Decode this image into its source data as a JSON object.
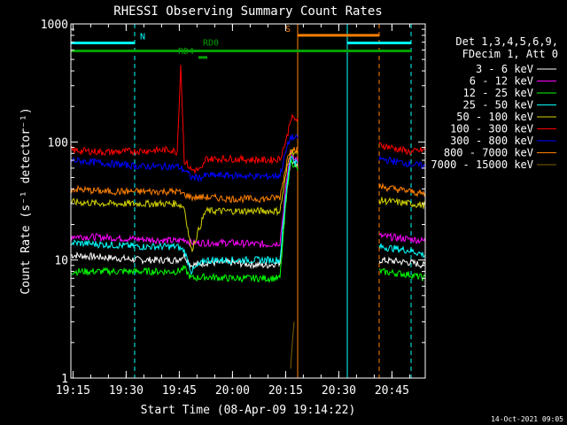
{
  "chart_data": {
    "type": "line",
    "title": "RHESSI Observing Summary Count Rates",
    "xlabel": "Start Time (08-Apr-09 19:14:22)",
    "ylabel": "Count Rate (s⁻¹ detector⁻¹)",
    "x_unit": "minutes since 19:14:22",
    "xlim": [
      0,
      100
    ],
    "ylim": [
      1,
      1000
    ],
    "yscale": "log",
    "x_ticks": [
      {
        "x": 0.6,
        "label": "19:15"
      },
      {
        "x": 15.6,
        "label": "19:30"
      },
      {
        "x": 30.6,
        "label": "19:45"
      },
      {
        "x": 45.6,
        "label": "20:00"
      },
      {
        "x": 60.6,
        "label": "20:15"
      },
      {
        "x": 75.6,
        "label": "20:30"
      },
      {
        "x": 90.6,
        "label": "20:45"
      }
    ],
    "y_ticks": [
      {
        "y": 1,
        "label": "1"
      },
      {
        "y": 10,
        "label": "10"
      },
      {
        "y": 100,
        "label": "100"
      },
      {
        "y": 1000,
        "label": "1000"
      }
    ],
    "legend_title": [
      "Det 1,3,4,5,6,9,",
      "FDecim 1, Att 0"
    ],
    "legend_position": "right",
    "series": [
      {
        "name": "3 - 6 keV",
        "color": "#ffffff",
        "points": [
          [
            0,
            11
          ],
          [
            10,
            10.5
          ],
          [
            20,
            10
          ],
          [
            30,
            10
          ],
          [
            32,
            11
          ],
          [
            34,
            9
          ],
          [
            38,
            9.5
          ],
          [
            45,
            9.5
          ],
          [
            55,
            9
          ],
          [
            59,
            9.5
          ],
          [
            61,
            40
          ],
          [
            62,
            70
          ],
          [
            87,
            10
          ],
          [
            96,
            9.5
          ],
          [
            100,
            9
          ]
        ]
      },
      {
        "name": "6 - 12 keV",
        "color": "#ff00ff",
        "points": [
          [
            0,
            16
          ],
          [
            10,
            15.5
          ],
          [
            20,
            15
          ],
          [
            30,
            14.5
          ],
          [
            32,
            15
          ],
          [
            34,
            14
          ],
          [
            38,
            14
          ],
          [
            45,
            14
          ],
          [
            55,
            13.5
          ],
          [
            59,
            14
          ],
          [
            61,
            50
          ],
          [
            62,
            80
          ],
          [
            87,
            16
          ],
          [
            96,
            15
          ],
          [
            100,
            14.5
          ]
        ]
      },
      {
        "name": "12 - 25 keV",
        "color": "#00ff00",
        "points": [
          [
            0,
            8
          ],
          [
            10,
            8
          ],
          [
            20,
            8
          ],
          [
            30,
            8
          ],
          [
            32,
            8.5
          ],
          [
            34,
            7
          ],
          [
            38,
            7.2
          ],
          [
            45,
            7
          ],
          [
            55,
            7
          ],
          [
            59,
            7
          ],
          [
            61,
            40
          ],
          [
            62,
            70
          ],
          [
            87,
            8
          ],
          [
            96,
            7.5
          ],
          [
            100,
            7
          ]
        ]
      },
      {
        "name": "25 - 50 keV",
        "color": "#00ffff",
        "points": [
          [
            0,
            14
          ],
          [
            10,
            13.5
          ],
          [
            20,
            13
          ],
          [
            30,
            13
          ],
          [
            32,
            12
          ],
          [
            34,
            8
          ],
          [
            38,
            10
          ],
          [
            45,
            10
          ],
          [
            55,
            10
          ],
          [
            59,
            10
          ],
          [
            61,
            45
          ],
          [
            62,
            75
          ],
          [
            87,
            13
          ],
          [
            96,
            12
          ],
          [
            100,
            11
          ]
        ]
      },
      {
        "name": "50 - 100 keV",
        "color": "#d4d400",
        "points": [
          [
            0,
            31
          ],
          [
            10,
            30
          ],
          [
            20,
            30
          ],
          [
            30,
            30
          ],
          [
            32,
            28
          ],
          [
            34,
            12
          ],
          [
            38,
            26
          ],
          [
            45,
            26
          ],
          [
            55,
            26
          ],
          [
            59,
            26
          ],
          [
            61,
            60
          ],
          [
            62,
            85
          ],
          [
            87,
            32
          ],
          [
            96,
            30
          ],
          [
            100,
            29
          ]
        ]
      },
      {
        "name": "100 - 300 keV",
        "color": "#ff0000",
        "points": [
          [
            0,
            85
          ],
          [
            10,
            82
          ],
          [
            20,
            84
          ],
          [
            28,
            86
          ],
          [
            30,
            82
          ],
          [
            31,
            450
          ],
          [
            32,
            70
          ],
          [
            34,
            58
          ],
          [
            37,
            58
          ],
          [
            38,
            72
          ],
          [
            45,
            72
          ],
          [
            55,
            70
          ],
          [
            59,
            72
          ],
          [
            61,
            110
          ],
          [
            62,
            160
          ],
          [
            87,
            95
          ],
          [
            96,
            82
          ],
          [
            100,
            86
          ]
        ]
      },
      {
        "name": "300 - 800 keV",
        "color": "#0000ff",
        "points": [
          [
            0,
            70
          ],
          [
            10,
            66
          ],
          [
            20,
            62
          ],
          [
            30,
            62
          ],
          [
            32,
            58
          ],
          [
            34,
            50
          ],
          [
            37,
            50
          ],
          [
            38,
            52
          ],
          [
            45,
            52
          ],
          [
            55,
            51
          ],
          [
            59,
            52
          ],
          [
            61,
            90
          ],
          [
            62,
            110
          ],
          [
            87,
            72
          ],
          [
            96,
            65
          ],
          [
            100,
            62
          ]
        ]
      },
      {
        "name": "800 - 7000 keV",
        "color": "#ff8000",
        "points": [
          [
            0,
            40
          ],
          [
            10,
            38
          ],
          [
            20,
            38
          ],
          [
            30,
            38
          ],
          [
            32,
            36
          ],
          [
            34,
            34
          ],
          [
            38,
            34
          ],
          [
            45,
            33
          ],
          [
            55,
            33
          ],
          [
            59,
            34
          ],
          [
            61,
            70
          ],
          [
            62,
            90
          ],
          [
            87,
            42
          ],
          [
            96,
            38
          ],
          [
            100,
            36
          ]
        ]
      },
      {
        "name": "7000 - 15000 keV",
        "color": "#806000",
        "points": [
          [
            62,
            1.2
          ],
          [
            62.5,
            2
          ],
          [
            63,
            3
          ]
        ]
      }
    ],
    "state_bars": [
      {
        "label": "N",
        "color": "#00ffff",
        "y": 690,
        "x_start": 0,
        "x_end": 18
      },
      {
        "label": "",
        "color": "#00ffff",
        "y": 690,
        "x_start": 78,
        "x_end": 96
      },
      {
        "label": "S",
        "color": "#ff8000",
        "y": 800,
        "x_start": 64,
        "x_end": 87
      },
      {
        "label": "",
        "color": "#00a000",
        "y": 590,
        "x_start": 0,
        "x_end": 96
      },
      {
        "label": "RD4",
        "color": "#00a000",
        "y": 520,
        "x_start": 36,
        "x_end": 38.5
      },
      {
        "label": "RD0",
        "color": "#00a000",
        "y": 610,
        "x_start": 0,
        "x_end": 0
      }
    ],
    "vertical_markers": [
      {
        "x": 0,
        "color": "#00ffff",
        "style": "solid"
      },
      {
        "x": 18,
        "color": "#00ffff",
        "style": "dashed"
      },
      {
        "x": 64,
        "color": "#ff8000",
        "style": "solid"
      },
      {
        "x": 78,
        "color": "#00ffff",
        "style": "solid"
      },
      {
        "x": 87,
        "color": "#ff8000",
        "style": "dashed"
      },
      {
        "x": 96,
        "color": "#00ffff",
        "style": "dashed"
      }
    ],
    "footer_date": "14-Oct-2021 09:05"
  }
}
